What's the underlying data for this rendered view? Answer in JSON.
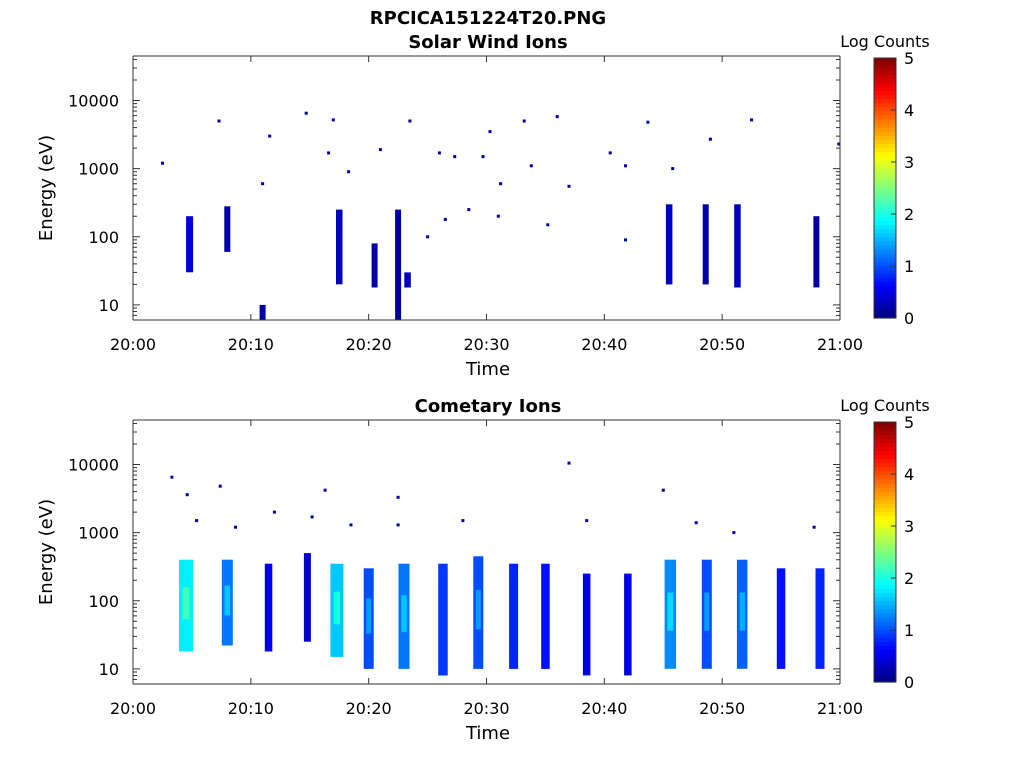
{
  "figure": {
    "filename_title": "RPCICA151224T20.PNG"
  },
  "chart_data": [
    {
      "type": "heatmap",
      "title": "Solar Wind Ions",
      "xlabel": "Time",
      "ylabel": "Energy (eV)",
      "x_tick_labels": [
        "20:00",
        "20:10",
        "20:20",
        "20:30",
        "20:40",
        "20:50",
        "21:00"
      ],
      "y_tick_labels": [
        "10",
        "100",
        "1000",
        "10000"
      ],
      "y_scale": "log",
      "ylim": [
        6,
        45000
      ],
      "colorbar": {
        "label": "Log Counts",
        "ticks": [
          "0",
          "1",
          "2",
          "3",
          "4",
          "5"
        ],
        "range": [
          0,
          5
        ],
        "colormap": "jet"
      },
      "clusters": [
        {
          "t": 4.8,
          "e_lo": 30,
          "e_hi": 200,
          "v": 0.4
        },
        {
          "t": 8.0,
          "e_lo": 60,
          "e_hi": 280,
          "v": 0.2
        },
        {
          "t": 11.0,
          "e_lo": 6,
          "e_hi": 10,
          "v": 0.2
        },
        {
          "t": 17.5,
          "e_lo": 20,
          "e_hi": 250,
          "v": 0.3
        },
        {
          "t": 20.5,
          "e_lo": 18,
          "e_hi": 80,
          "v": 0.2
        },
        {
          "t": 22.5,
          "e_lo": 6,
          "e_hi": 250,
          "v": 0.2
        },
        {
          "t": 23.3,
          "e_lo": 18,
          "e_hi": 30,
          "v": 0.3
        },
        {
          "t": 45.5,
          "e_lo": 20,
          "e_hi": 300,
          "v": 0.3
        },
        {
          "t": 48.6,
          "e_lo": 20,
          "e_hi": 300,
          "v": 0.2
        },
        {
          "t": 51.3,
          "e_lo": 18,
          "e_hi": 300,
          "v": 0.3
        },
        {
          "t": 58.0,
          "e_lo": 18,
          "e_hi": 200,
          "v": 0.2
        }
      ],
      "points": [
        {
          "t": 2.5,
          "e": 1200,
          "v": 0.2
        },
        {
          "t": 7.3,
          "e": 5000,
          "v": 0.2
        },
        {
          "t": 11.6,
          "e": 3000,
          "v": 0.2
        },
        {
          "t": 11.0,
          "e": 600,
          "v": 0.2
        },
        {
          "t": 14.7,
          "e": 6500,
          "v": 0.2
        },
        {
          "t": 16.6,
          "e": 1700,
          "v": 0.2
        },
        {
          "t": 17.0,
          "e": 5200,
          "v": 0.2
        },
        {
          "t": 18.3,
          "e": 900,
          "v": 0.2
        },
        {
          "t": 21.0,
          "e": 1900,
          "v": 0.2
        },
        {
          "t": 23.5,
          "e": 5000,
          "v": 0.2
        },
        {
          "t": 26.0,
          "e": 1700,
          "v": 0.2
        },
        {
          "t": 27.3,
          "e": 1500,
          "v": 0.2
        },
        {
          "t": 29.7,
          "e": 1500,
          "v": 0.2
        },
        {
          "t": 30.3,
          "e": 3500,
          "v": 0.2
        },
        {
          "t": 31.2,
          "e": 600,
          "v": 0.2
        },
        {
          "t": 33.2,
          "e": 5000,
          "v": 0.2
        },
        {
          "t": 33.8,
          "e": 1100,
          "v": 0.2
        },
        {
          "t": 36.0,
          "e": 5800,
          "v": 0.2
        },
        {
          "t": 37.0,
          "e": 550,
          "v": 0.2
        },
        {
          "t": 40.5,
          "e": 1700,
          "v": 0.2
        },
        {
          "t": 41.8,
          "e": 1100,
          "v": 0.2
        },
        {
          "t": 43.7,
          "e": 4800,
          "v": 0.2
        },
        {
          "t": 45.8,
          "e": 1000,
          "v": 0.2
        },
        {
          "t": 49.0,
          "e": 2700,
          "v": 0.2
        },
        {
          "t": 52.5,
          "e": 5200,
          "v": 0.2
        },
        {
          "t": 59.9,
          "e": 2300,
          "v": 0.2
        },
        {
          "t": 25.0,
          "e": 100,
          "v": 0.2
        },
        {
          "t": 41.8,
          "e": 90,
          "v": 0.2
        },
        {
          "t": 35.2,
          "e": 150,
          "v": 0.2
        },
        {
          "t": 31.0,
          "e": 200,
          "v": 0.2
        },
        {
          "t": 28.5,
          "e": 250,
          "v": 0.2
        },
        {
          "t": 26.5,
          "e": 180,
          "v": 0.2
        }
      ]
    },
    {
      "type": "heatmap",
      "title": "Cometary Ions",
      "xlabel": "Time",
      "ylabel": "Energy (eV)",
      "x_tick_labels": [
        "20:00",
        "20:10",
        "20:20",
        "20:30",
        "20:40",
        "20:50",
        "21:00"
      ],
      "y_tick_labels": [
        "10",
        "100",
        "1000",
        "10000"
      ],
      "y_scale": "log",
      "ylim": [
        6,
        45000
      ],
      "colorbar": {
        "label": "Log Counts",
        "ticks": [
          "0",
          "1",
          "2",
          "3",
          "4",
          "5"
        ],
        "range": [
          0,
          5
        ],
        "colormap": "jet"
      },
      "clusters": [
        {
          "t": 4.5,
          "e_lo": 18,
          "e_hi": 400,
          "v": 1.8
        },
        {
          "t": 8.0,
          "e_lo": 22,
          "e_hi": 400,
          "v": 1.2
        },
        {
          "t": 11.5,
          "e_lo": 18,
          "e_hi": 350,
          "v": 0.5
        },
        {
          "t": 14.8,
          "e_lo": 25,
          "e_hi": 500,
          "v": 0.4
        },
        {
          "t": 17.3,
          "e_lo": 15,
          "e_hi": 350,
          "v": 1.6
        },
        {
          "t": 20.0,
          "e_lo": 10,
          "e_hi": 300,
          "v": 1.0
        },
        {
          "t": 23.0,
          "e_lo": 10,
          "e_hi": 350,
          "v": 1.2
        },
        {
          "t": 26.3,
          "e_lo": 8,
          "e_hi": 350,
          "v": 0.9
        },
        {
          "t": 29.3,
          "e_lo": 10,
          "e_hi": 450,
          "v": 1.0
        },
        {
          "t": 32.3,
          "e_lo": 10,
          "e_hi": 350,
          "v": 0.8
        },
        {
          "t": 35.0,
          "e_lo": 10,
          "e_hi": 350,
          "v": 0.7
        },
        {
          "t": 38.5,
          "e_lo": 8,
          "e_hi": 250,
          "v": 0.5
        },
        {
          "t": 42.0,
          "e_lo": 8,
          "e_hi": 250,
          "v": 0.5
        },
        {
          "t": 45.6,
          "e_lo": 10,
          "e_hi": 400,
          "v": 1.3
        },
        {
          "t": 48.7,
          "e_lo": 10,
          "e_hi": 400,
          "v": 1.0
        },
        {
          "t": 51.7,
          "e_lo": 10,
          "e_hi": 400,
          "v": 1.1
        },
        {
          "t": 55.0,
          "e_lo": 10,
          "e_hi": 300,
          "v": 0.7
        },
        {
          "t": 58.3,
          "e_lo": 10,
          "e_hi": 300,
          "v": 0.8
        }
      ],
      "points": [
        {
          "t": 3.3,
          "e": 6500,
          "v": 0.2
        },
        {
          "t": 4.6,
          "e": 3600,
          "v": 0.2
        },
        {
          "t": 7.4,
          "e": 4800,
          "v": 0.2
        },
        {
          "t": 5.4,
          "e": 1500,
          "v": 0.2
        },
        {
          "t": 8.7,
          "e": 1200,
          "v": 0.2
        },
        {
          "t": 12.0,
          "e": 2000,
          "v": 0.2
        },
        {
          "t": 16.3,
          "e": 4200,
          "v": 0.2
        },
        {
          "t": 15.2,
          "e": 1700,
          "v": 0.2
        },
        {
          "t": 18.5,
          "e": 1300,
          "v": 0.2
        },
        {
          "t": 22.5,
          "e": 3300,
          "v": 0.2
        },
        {
          "t": 22.5,
          "e": 1300,
          "v": 0.2
        },
        {
          "t": 28.0,
          "e": 1500,
          "v": 0.2
        },
        {
          "t": 37.0,
          "e": 10500,
          "v": 0.2
        },
        {
          "t": 38.5,
          "e": 1500,
          "v": 0.2
        },
        {
          "t": 45.0,
          "e": 4200,
          "v": 0.2
        },
        {
          "t": 47.8,
          "e": 1400,
          "v": 0.2
        },
        {
          "t": 51.0,
          "e": 1000,
          "v": 0.2
        },
        {
          "t": 57.8,
          "e": 1200,
          "v": 0.2
        }
      ]
    }
  ]
}
